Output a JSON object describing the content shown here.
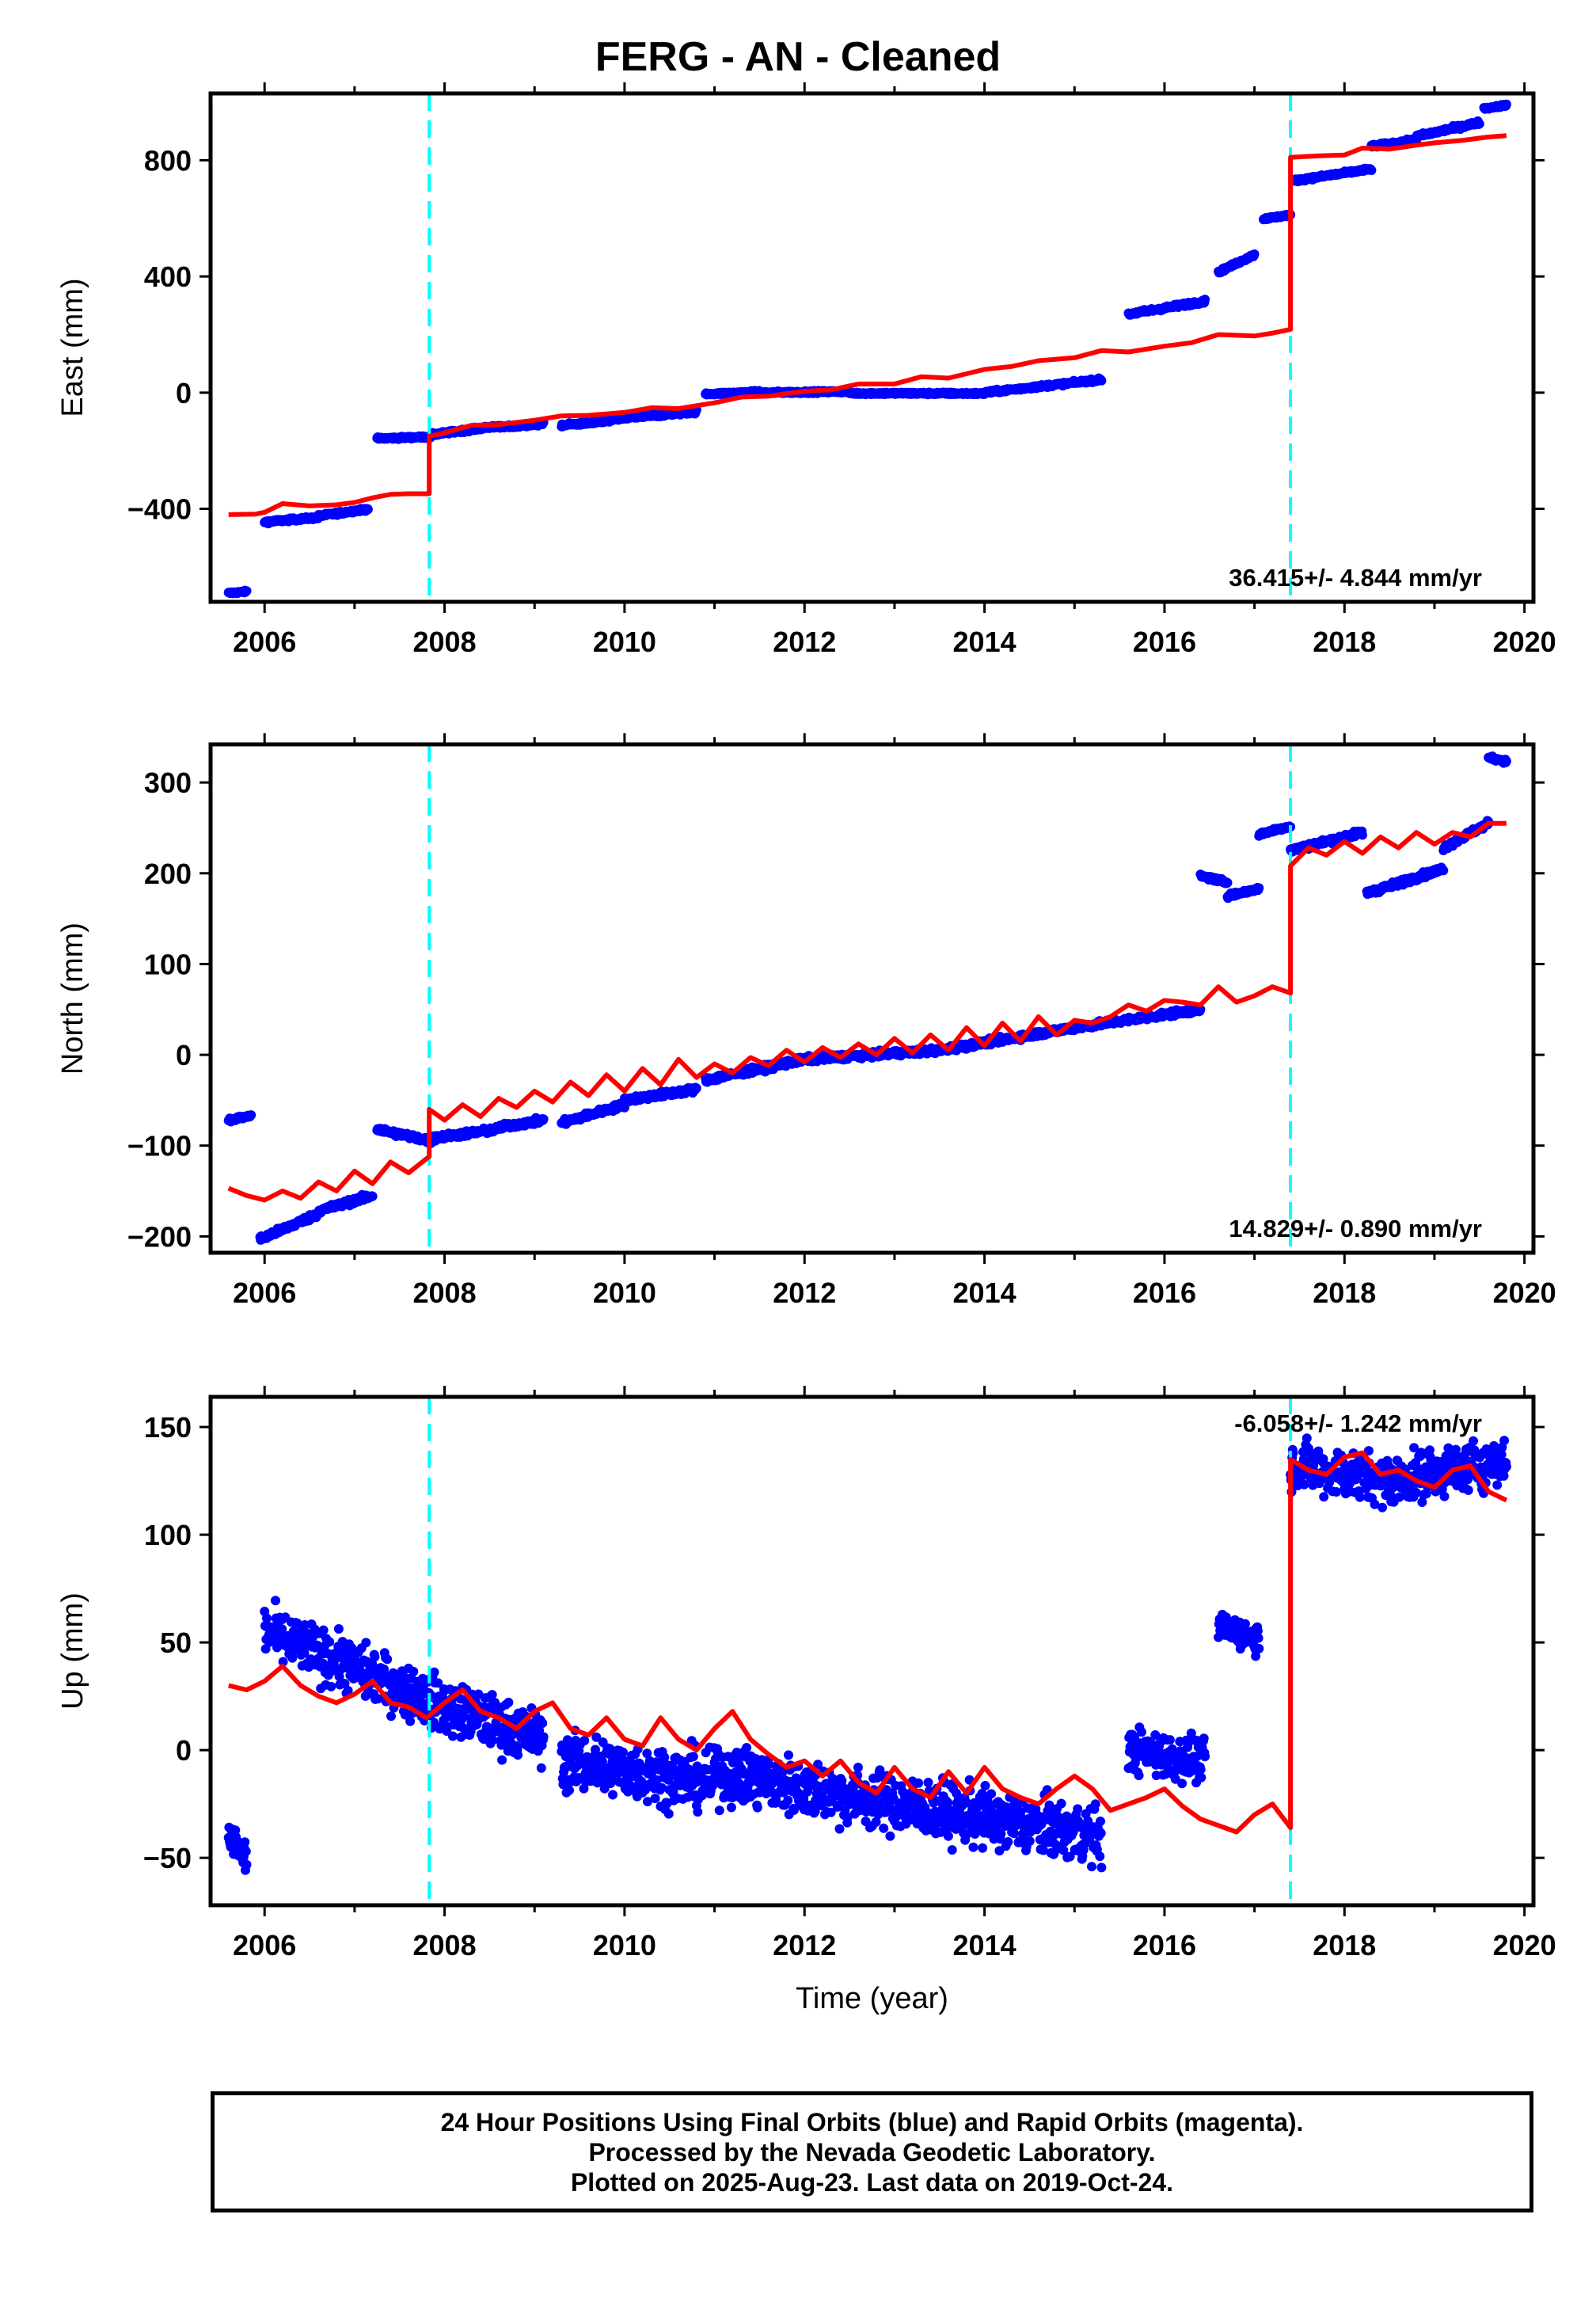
{
  "title": "FERG  - AN - Cleaned",
  "footer": {
    "lines": [
      "24 Hour Positions Using Final Orbits (blue) and Rapid Orbits (magenta).",
      "Processed by the Nevada Geodetic Laboratory.",
      "Plotted on 2025-Aug-23. Last data on 2019-Oct-24."
    ]
  },
  "colors": {
    "data": "#0000ff",
    "model": "#ff0000",
    "offset_line": "#00ffff",
    "frame": "#000000"
  },
  "chart_data": [
    {
      "type": "scatter",
      "name_key": "east",
      "ylabel": "East (mm)",
      "xlim": [
        2005.4,
        2020.1
      ],
      "ylim": [
        -720,
        1030
      ],
      "yticks": [
        -400,
        0,
        400,
        800
      ],
      "yticklabels": [
        "−400",
        "0",
        "400",
        "800"
      ],
      "xticks": [
        2006,
        2008,
        2010,
        2012,
        2014,
        2016,
        2018,
        2020
      ],
      "offsets": [
        2007.83,
        2017.4
      ],
      "rate_label": "36.415+/- 4.844 mm/yr",
      "data_segments": [
        {
          "x": [
            2005.6,
            2005.8
          ],
          "y": [
            -690,
            -685
          ],
          "noise": 4
        },
        {
          "x": [
            2006.0,
            2006.6
          ],
          "y": [
            -445,
            -430
          ],
          "noise": 5
        },
        {
          "x": [
            2006.6,
            2007.15
          ],
          "y": [
            -425,
            -400
          ],
          "noise": 5
        },
        {
          "x": [
            2007.25,
            2007.85
          ],
          "y": [
            -158,
            -152
          ],
          "noise": 4
        },
        {
          "x": [
            2007.85,
            2008.6
          ],
          "y": [
            -145,
            -115
          ],
          "noise": 5
        },
        {
          "x": [
            2008.6,
            2009.1
          ],
          "y": [
            -120,
            -108
          ],
          "noise": 5
        },
        {
          "x": [
            2009.3,
            2009.85
          ],
          "y": [
            -112,
            -98
          ],
          "noise": 5
        },
        {
          "x": [
            2009.85,
            2010.8
          ],
          "y": [
            -92,
            -65
          ],
          "noise": 6
        },
        {
          "x": [
            2010.9,
            2011.5
          ],
          "y": [
            -5,
            3
          ],
          "noise": 4
        },
        {
          "x": [
            2011.5,
            2012.5
          ],
          "y": [
            0,
            4
          ],
          "noise": 4
        },
        {
          "x": [
            2012.5,
            2014.0
          ],
          "y": [
            -2,
            -3
          ],
          "noise": 4
        },
        {
          "x": [
            2014.0,
            2015.3
          ],
          "y": [
            0,
            45
          ],
          "noise": 5
        },
        {
          "x": [
            2015.6,
            2016.45
          ],
          "y": [
            270,
            315
          ],
          "noise": 6
        },
        {
          "x": [
            2016.6,
            2017.0
          ],
          "y": [
            415,
            475
          ],
          "noise": 5
        },
        {
          "x": [
            2017.1,
            2017.4
          ],
          "y": [
            598,
            612
          ],
          "noise": 4
        },
        {
          "x": [
            2017.45,
            2018.3
          ],
          "y": [
            730,
            770
          ],
          "noise": 5
        },
        {
          "x": [
            2018.3,
            2018.8
          ],
          "y": [
            848,
            870
          ],
          "noise": 5
        },
        {
          "x": [
            2018.8,
            2019.5
          ],
          "y": [
            882,
            930
          ],
          "noise": 6
        },
        {
          "x": [
            2019.55,
            2019.8
          ],
          "y": [
            978,
            990
          ],
          "noise": 4
        }
      ],
      "model": {
        "x": [
          2005.6,
          2005.9,
          2006.0,
          2006.2,
          2006.5,
          2006.8,
          2007.0,
          2007.2,
          2007.4,
          2007.6,
          2007.83,
          2007.83,
          2008.0,
          2008.3,
          2008.6,
          2009.0,
          2009.3,
          2009.6,
          2010.0,
          2010.3,
          2010.6,
          2011.0,
          2011.3,
          2011.6,
          2012.0,
          2012.3,
          2012.6,
          2013.0,
          2013.3,
          2013.6,
          2014.0,
          2014.3,
          2014.6,
          2015.0,
          2015.3,
          2015.6,
          2016.0,
          2016.3,
          2016.6,
          2017.0,
          2017.2,
          2017.4,
          2017.4,
          2017.7,
          2018.0,
          2018.2,
          2018.5,
          2018.8,
          2019.0,
          2019.3,
          2019.6,
          2019.8
        ],
        "y": [
          -420,
          -418,
          -412,
          -382,
          -390,
          -386,
          -378,
          -362,
          -350,
          -348,
          -348,
          -150,
          -138,
          -112,
          -110,
          -95,
          -80,
          -78,
          -68,
          -52,
          -55,
          -35,
          -15,
          -12,
          5,
          10,
          30,
          30,
          55,
          50,
          80,
          90,
          110,
          120,
          145,
          140,
          160,
          172,
          200,
          195,
          205,
          218,
          810,
          815,
          818,
          842,
          838,
          852,
          860,
          868,
          880,
          885
        ]
      }
    },
    {
      "type": "scatter",
      "name_key": "north",
      "ylabel": "North (mm)",
      "xlim": [
        2005.4,
        2020.1
      ],
      "ylim": [
        -218,
        342
      ],
      "yticks": [
        -200,
        -100,
        0,
        100,
        200,
        300
      ],
      "yticklabels": [
        "−200",
        "−100",
        "0",
        "100",
        "200",
        "300"
      ],
      "xticks": [
        2006,
        2008,
        2010,
        2012,
        2014,
        2016,
        2018,
        2020
      ],
      "offsets": [
        2007.83,
        2017.4
      ],
      "rate_label": "14.829+/- 0.890 mm/yr",
      "data_segments": [
        {
          "x": [
            2005.6,
            2005.85
          ],
          "y": [
            -72,
            -67
          ],
          "noise": 2
        },
        {
          "x": [
            2005.95,
            2006.6
          ],
          "y": [
            -203,
            -175
          ],
          "noise": 3
        },
        {
          "x": [
            2006.6,
            2007.2
          ],
          "y": [
            -172,
            -155
          ],
          "noise": 3
        },
        {
          "x": [
            2007.25,
            2007.85
          ],
          "y": [
            -82,
            -95
          ],
          "noise": 3
        },
        {
          "x": [
            2007.85,
            2008.6
          ],
          "y": [
            -92,
            -82
          ],
          "noise": 3
        },
        {
          "x": [
            2008.6,
            2009.1
          ],
          "y": [
            -80,
            -72
          ],
          "noise": 3
        },
        {
          "x": [
            2009.3,
            2010.0
          ],
          "y": [
            -75,
            -55
          ],
          "noise": 3
        },
        {
          "x": [
            2010.0,
            2010.8
          ],
          "y": [
            -50,
            -38
          ],
          "noise": 3
        },
        {
          "x": [
            2010.9,
            2012.0
          ],
          "y": [
            -28,
            -5
          ],
          "noise": 3
        },
        {
          "x": [
            2012.0,
            2013.5
          ],
          "y": [
            -5,
            5
          ],
          "noise": 3
        },
        {
          "x": [
            2013.5,
            2015.0
          ],
          "y": [
            5,
            30
          ],
          "noise": 3
        },
        {
          "x": [
            2015.0,
            2016.4
          ],
          "y": [
            30,
            50
          ],
          "noise": 3
        },
        {
          "x": [
            2016.4,
            2016.7
          ],
          "y": [
            197,
            190
          ],
          "noise": 2
        },
        {
          "x": [
            2016.7,
            2017.05
          ],
          "y": [
            175,
            183
          ],
          "noise": 2
        },
        {
          "x": [
            2017.05,
            2017.4
          ],
          "y": [
            243,
            252
          ],
          "noise": 2
        },
        {
          "x": [
            2017.4,
            2018.2
          ],
          "y": [
            225,
            245
          ],
          "noise": 3
        },
        {
          "x": [
            2018.25,
            2019.1
          ],
          "y": [
            178,
            205
          ],
          "noise": 3
        },
        {
          "x": [
            2019.1,
            2019.6
          ],
          "y": [
            228,
            255
          ],
          "noise": 3
        },
        {
          "x": [
            2019.6,
            2019.8
          ],
          "y": [
            328,
            323
          ],
          "noise": 2
        }
      ],
      "model": {
        "x": [
          2005.6,
          2005.8,
          2006.0,
          2006.2,
          2006.4,
          2006.6,
          2006.8,
          2007.0,
          2007.2,
          2007.4,
          2007.6,
          2007.83,
          2007.83,
          2008.0,
          2008.2,
          2008.4,
          2008.6,
          2008.8,
          2009.0,
          2009.2,
          2009.4,
          2009.6,
          2009.8,
          2010.0,
          2010.2,
          2010.4,
          2010.6,
          2010.8,
          2011.0,
          2011.2,
          2011.4,
          2011.6,
          2011.8,
          2012.0,
          2012.2,
          2012.4,
          2012.6,
          2012.8,
          2013.0,
          2013.2,
          2013.4,
          2013.6,
          2013.8,
          2014.0,
          2014.2,
          2014.4,
          2014.6,
          2014.8,
          2015.0,
          2015.2,
          2015.4,
          2015.6,
          2015.8,
          2016.0,
          2016.2,
          2016.4,
          2016.6,
          2016.8,
          2017.0,
          2017.2,
          2017.4,
          2017.4,
          2017.6,
          2017.8,
          2018.0,
          2018.2,
          2018.4,
          2018.6,
          2018.8,
          2019.0,
          2019.2,
          2019.4,
          2019.6,
          2019.8
        ],
        "y": [
          -147,
          -155,
          -160,
          -150,
          -158,
          -140,
          -150,
          -128,
          -142,
          -118,
          -130,
          -112,
          -60,
          -72,
          -55,
          -68,
          -48,
          -58,
          -40,
          -52,
          -30,
          -45,
          -22,
          -40,
          -15,
          -33,
          -5,
          -25,
          -10,
          -20,
          -3,
          -12,
          5,
          -8,
          8,
          -3,
          12,
          0,
          18,
          2,
          22,
          5,
          30,
          10,
          35,
          15,
          42,
          22,
          38,
          35,
          42,
          55,
          48,
          60,
          58,
          55,
          75,
          58,
          65,
          75,
          68,
          208,
          228,
          220,
          235,
          222,
          240,
          228,
          245,
          232,
          245,
          240,
          255,
          255
        ]
      }
    },
    {
      "type": "scatter",
      "name_key": "up",
      "ylabel": "Up (mm)",
      "xlabel": "Time (year)",
      "xlim": [
        2005.4,
        2020.1
      ],
      "ylim": [
        -72,
        164
      ],
      "yticks": [
        -50,
        0,
        50,
        100,
        150
      ],
      "yticklabels": [
        "−50",
        "0",
        "50",
        "100",
        "150"
      ],
      "xticks": [
        2006,
        2008,
        2010,
        2012,
        2014,
        2016,
        2018,
        2020
      ],
      "offsets": [
        2007.83,
        2017.4
      ],
      "rate_label": "-6.058+/- 1.242 mm/yr",
      "data_segments": [
        {
          "x": [
            2005.6,
            2005.8
          ],
          "y": [
            -40,
            -50
          ],
          "noise": 8
        },
        {
          "x": [
            2006.0,
            2007.0
          ],
          "y": [
            55,
            38
          ],
          "noise": 12
        },
        {
          "x": [
            2007.0,
            2008.0
          ],
          "y": [
            38,
            20
          ],
          "noise": 12
        },
        {
          "x": [
            2008.0,
            2009.1
          ],
          "y": [
            20,
            5
          ],
          "noise": 12
        },
        {
          "x": [
            2009.3,
            2011.0
          ],
          "y": [
            -5,
            -15
          ],
          "noise": 13
        },
        {
          "x": [
            2011.0,
            2013.0
          ],
          "y": [
            -10,
            -25
          ],
          "noise": 13
        },
        {
          "x": [
            2013.0,
            2015.3
          ],
          "y": [
            -25,
            -40
          ],
          "noise": 13
        },
        {
          "x": [
            2015.6,
            2016.45
          ],
          "y": [
            0,
            -5
          ],
          "noise": 10
        },
        {
          "x": [
            2016.6,
            2017.05
          ],
          "y": [
            58,
            52
          ],
          "noise": 7
        },
        {
          "x": [
            2017.4,
            2018.5
          ],
          "y": [
            132,
            125
          ],
          "noise": 11
        },
        {
          "x": [
            2018.5,
            2019.8
          ],
          "y": [
            125,
            135
          ],
          "noise": 11
        }
      ],
      "model": {
        "x": [
          2005.6,
          2005.8,
          2006.0,
          2006.2,
          2006.4,
          2006.6,
          2006.8,
          2007.0,
          2007.2,
          2007.4,
          2007.6,
          2007.8,
          2008.0,
          2008.2,
          2008.4,
          2008.6,
          2008.8,
          2009.0,
          2009.2,
          2009.4,
          2009.6,
          2009.8,
          2010.0,
          2010.2,
          2010.4,
          2010.6,
          2010.8,
          2011.0,
          2011.2,
          2011.4,
          2011.6,
          2011.8,
          2012.0,
          2012.2,
          2012.4,
          2012.6,
          2012.8,
          2013.0,
          2013.2,
          2013.4,
          2013.6,
          2013.8,
          2014.0,
          2014.2,
          2014.4,
          2014.6,
          2014.8,
          2015.0,
          2015.2,
          2015.4,
          2015.6,
          2015.8,
          2016.0,
          2016.2,
          2016.4,
          2016.6,
          2016.8,
          2017.0,
          2017.2,
          2017.4,
          2017.4,
          2017.6,
          2017.8,
          2018.0,
          2018.2,
          2018.4,
          2018.6,
          2018.8,
          2019.0,
          2019.2,
          2019.4,
          2019.6,
          2019.8
        ],
        "y": [
          30,
          28,
          32,
          39,
          30,
          25,
          22,
          26,
          32,
          22,
          20,
          15,
          22,
          28,
          18,
          15,
          10,
          18,
          22,
          10,
          7,
          15,
          5,
          2,
          15,
          5,
          0,
          10,
          18,
          5,
          -2,
          -8,
          -5,
          -12,
          -5,
          -15,
          -20,
          -8,
          -18,
          -22,
          -10,
          -20,
          -8,
          -18,
          -22,
          -25,
          -18,
          -12,
          -18,
          -28,
          -25,
          -22,
          -18,
          -26,
          -32,
          -35,
          -38,
          -30,
          -25,
          -36,
          135,
          130,
          128,
          136,
          138,
          128,
          130,
          125,
          122,
          130,
          132,
          120,
          116
        ]
      }
    }
  ]
}
